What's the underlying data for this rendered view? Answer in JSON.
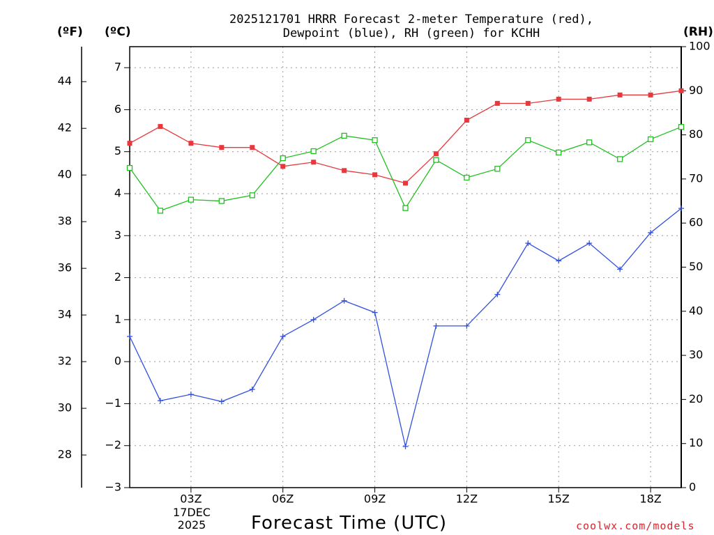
{
  "chart_data": {
    "type": "line",
    "title_line1": "2025121701 HRRR Forecast 2-meter Temperature (red),",
    "title_line2": "Dewpoint (blue), RH (green) for KCHH",
    "left_axis_f_label": "(ºF)",
    "left_axis_c_label": "(ºC)",
    "right_axis_label": "(RH)",
    "xlabel": "Forecast Time (UTC)",
    "date_line1": "17DEC",
    "date_line2": "2025",
    "credit": "coolwx.com/models",
    "x_hours": [
      1,
      2,
      3,
      4,
      5,
      6,
      7,
      8,
      9,
      10,
      11,
      12,
      13,
      14,
      15,
      16,
      17,
      18,
      19
    ],
    "x_ticks": [
      {
        "hour": 3,
        "label": "03Z"
      },
      {
        "hour": 6,
        "label": "06Z"
      },
      {
        "hour": 9,
        "label": "09Z"
      },
      {
        "hour": 12,
        "label": "12Z"
      },
      {
        "hour": 15,
        "label": "15Z"
      },
      {
        "hour": 18,
        "label": "18Z"
      }
    ],
    "celsius_range": [
      -3,
      7.5
    ],
    "celsius_ticks": [
      -3,
      -2,
      -1,
      0,
      1,
      2,
      3,
      4,
      5,
      6,
      7
    ],
    "celsius_tick_labels": [
      "−3",
      "−2",
      "−1",
      "0",
      "1",
      "2",
      "3",
      "4",
      "5",
      "6",
      "7"
    ],
    "fahrenheit_ticks": [
      28,
      30,
      32,
      34,
      36,
      38,
      40,
      42,
      44
    ],
    "fahrenheit_tick_labels": [
      "28",
      "30",
      "32",
      "34",
      "36",
      "38",
      "40",
      "42",
      "44"
    ],
    "rh_range": [
      0,
      100
    ],
    "rh_ticks": [
      0,
      10,
      20,
      30,
      40,
      50,
      60,
      70,
      80,
      90,
      100
    ],
    "rh_tick_labels": [
      "0",
      "10",
      "20",
      "30",
      "40",
      "50",
      "60",
      "70",
      "80",
      "90",
      "100"
    ],
    "grid": true,
    "series": [
      {
        "name": "Temperature",
        "axis": "celsius",
        "color": "#e8383c",
        "marker": "filled-square",
        "values": [
          5.2,
          5.6,
          5.2,
          5.1,
          5.1,
          4.65,
          4.75,
          4.55,
          4.45,
          4.25,
          4.95,
          5.75,
          6.15,
          6.15,
          6.25,
          6.25,
          6.35,
          6.35,
          6.45
        ]
      },
      {
        "name": "Dewpoint",
        "axis": "celsius",
        "color": "#3050e0",
        "marker": "plus",
        "values": [
          0.6,
          -0.93,
          -0.78,
          -0.95,
          -0.66,
          0.6,
          1.0,
          1.45,
          1.17,
          -2.02,
          0.85,
          0.85,
          1.6,
          2.82,
          2.4,
          2.82,
          2.2,
          3.07,
          3.65
        ]
      },
      {
        "name": "RH",
        "axis": "rh",
        "color": "#20c020",
        "marker": "open-square",
        "values": [
          72.5,
          62.8,
          65.3,
          65.0,
          66.3,
          74.7,
          76.3,
          79.8,
          78.8,
          63.4,
          74.3,
          70.3,
          72.3,
          78.8,
          76.0,
          78.3,
          74.5,
          79.0,
          81.8
        ]
      }
    ]
  }
}
